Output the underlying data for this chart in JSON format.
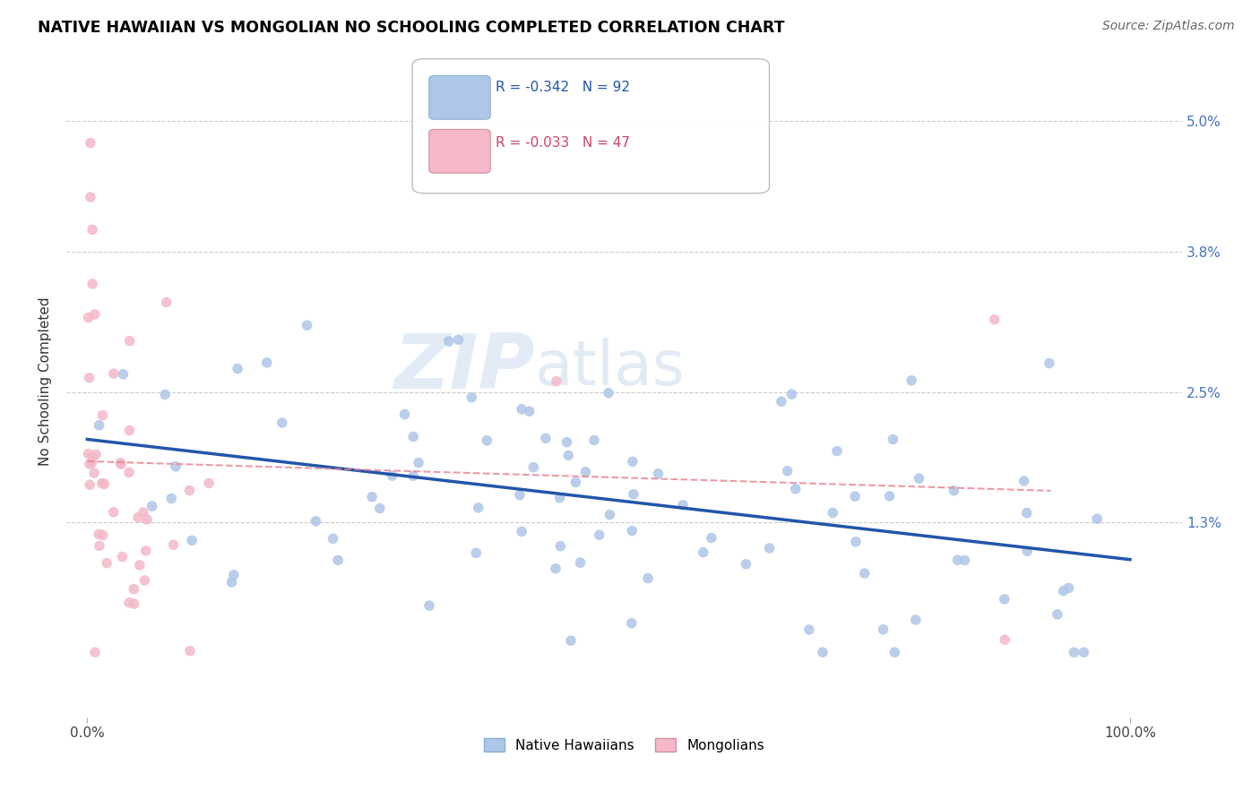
{
  "title": "NATIVE HAWAIIAN VS MONGOLIAN NO SCHOOLING COMPLETED CORRELATION CHART",
  "source": "Source: ZipAtlas.com",
  "ylabel": "No Schooling Completed",
  "ytick_vals": [
    0.013,
    0.025,
    0.038,
    0.05
  ],
  "ytick_labels": [
    "1.3%",
    "2.5%",
    "3.8%",
    "5.0%"
  ],
  "xlim": [
    -0.02,
    1.05
  ],
  "ylim": [
    -0.005,
    0.057
  ],
  "legend_r1": "R = -0.342   N = 92",
  "legend_r2": "R = -0.033   N = 47",
  "color_hawaiian": "#aec6e8",
  "color_mongolian": "#f4b8c8",
  "color_line_hawaiian": "#2255aa",
  "color_line_mongolian": "#e88090",
  "watermark_zip": "ZIP",
  "watermark_atlas": "atlas",
  "grid_color": "#cccccc"
}
